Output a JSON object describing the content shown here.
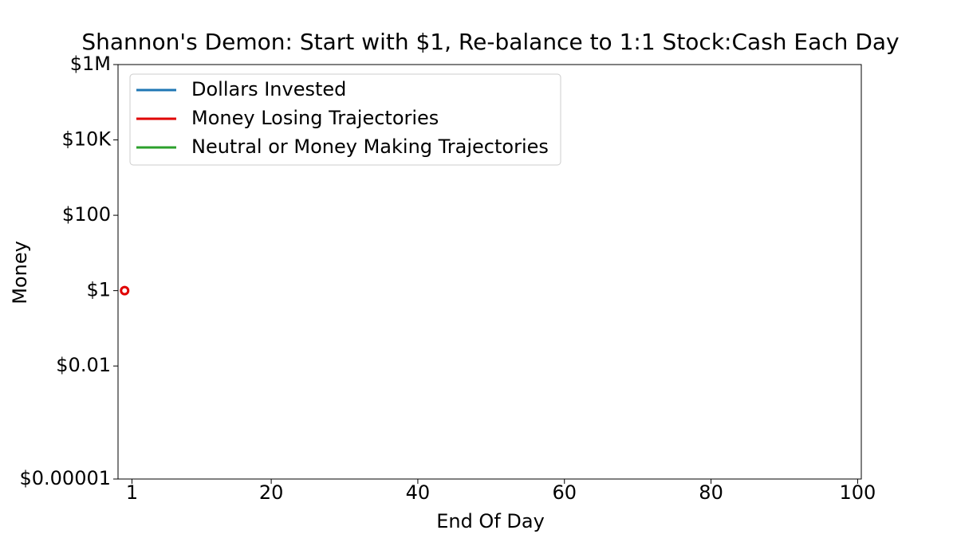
{
  "chart_data": {
    "type": "line",
    "title": "Shannon's Demon: Start with $1, Re-balance to 1:1 Stock:Cash Each Day",
    "x_label": "End Of Day",
    "y_label": "Money",
    "x": [
      0
    ],
    "series": [
      {
        "name": "Dollars Invested",
        "color": "#1f77b4",
        "values": [
          null
        ]
      },
      {
        "name": "Money Losing Trajectories",
        "color": "#e00000",
        "values": [
          1
        ],
        "marker": "hollow-circle"
      },
      {
        "name": "Neutral or Money Making Trajectories",
        "color": "#2ca02c",
        "values": [
          null
        ]
      }
    ],
    "xlim": [
      -0.9,
      100.5
    ],
    "xticks": [
      1,
      20,
      40,
      60,
      80,
      100
    ],
    "ylim": [
      1e-05,
      1000000
    ],
    "y_scale": "log",
    "yticks": [
      {
        "value": 1e-05,
        "label": "$0.00001"
      },
      {
        "value": 0.01,
        "label": "$0.01"
      },
      {
        "value": 1,
        "label": "$1"
      },
      {
        "value": 100,
        "label": "$100"
      },
      {
        "value": 10000,
        "label": "$10K"
      },
      {
        "value": 1000000,
        "label": "$1M"
      }
    ],
    "legend": "upper-left",
    "grid": false
  }
}
